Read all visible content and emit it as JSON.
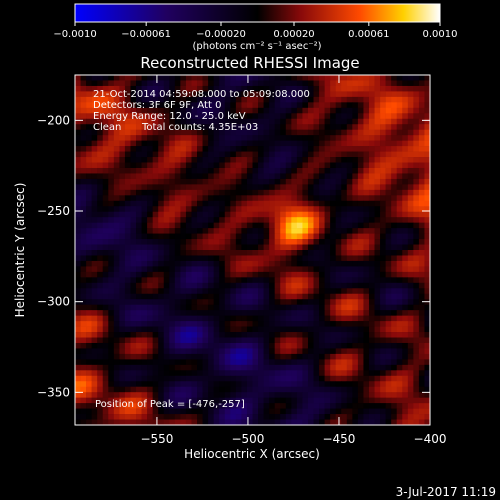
{
  "chart_data": {
    "type": "heatmap",
    "title": "Reconstructed RHESSI Image",
    "xlabel": "Heliocentric X (arcsec)",
    "ylabel": "Heliocentric Y (arcsec)",
    "xlim": [
      -595,
      -400
    ],
    "ylim": [
      -368,
      -175
    ],
    "xticks": [
      -550,
      -500,
      -450,
      -400
    ],
    "yticks": [
      -350,
      -300,
      -250,
      -200
    ],
    "grid": false,
    "colorbar": {
      "colormap": "blue-black-red-yellow-white",
      "range": [
        -0.001,
        0.001
      ],
      "ticks": [
        "-0.0010",
        "-0.00061",
        "-0.00020",
        "0.00020",
        "0.00061",
        "0.0010"
      ],
      "tick_values": [
        -0.001,
        -0.00061,
        -0.0002,
        0.0002,
        0.00061,
        0.001
      ],
      "unit_label": "(photons cm⁻² s⁻¹ asec⁻²)"
    },
    "peak": {
      "x": -476,
      "y": -257,
      "intensity": 0.001
    },
    "annotations": {
      "time_range": "21-Oct-2014 04:59:08.000 to 05:09:08.000",
      "detectors": "Detectors: 3F 6F 9F, Att 0",
      "energy": "Energy Range: 12.0 - 25.0 keV",
      "clean": "Clean",
      "total_counts": "Total counts: 4.35E+03",
      "position_of_peak": "Position of Peak = [-476,-257]"
    }
  },
  "footer": {
    "date": "3-Jul-2017 11:19"
  }
}
